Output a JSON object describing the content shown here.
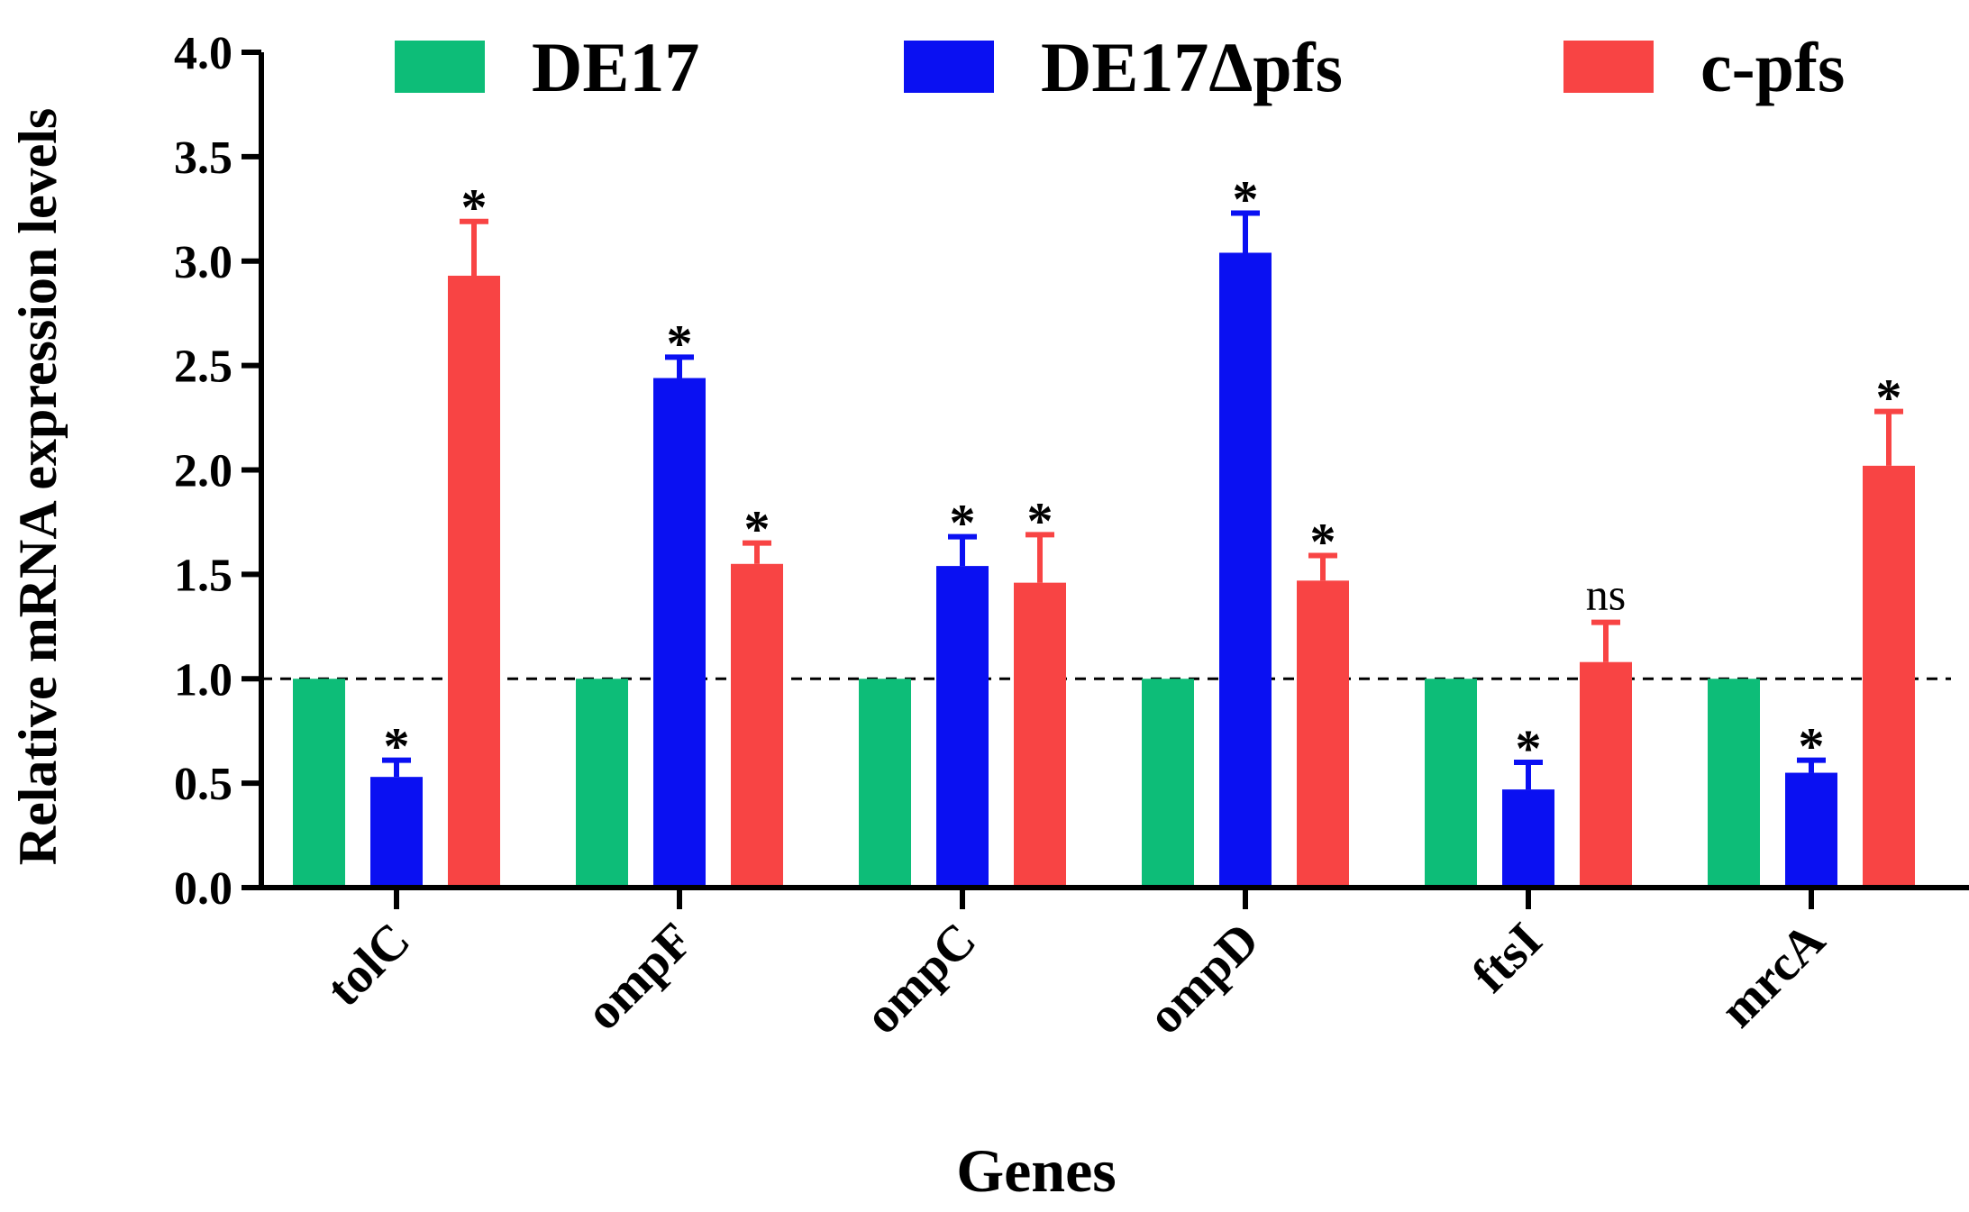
{
  "chart_data": {
    "type": "bar",
    "title": "",
    "xlabel": "Genes",
    "ylabel": "Relative mRNA expression levels",
    "ylim": [
      0,
      4.0
    ],
    "yticks": [
      "0.0",
      "0.5",
      "1.0",
      "1.5",
      "2.0",
      "2.5",
      "3.0",
      "3.5",
      "4.0"
    ],
    "categories": [
      "tolC",
      "ompF",
      "ompC",
      "ompD",
      "ftsI",
      "mrcA"
    ],
    "reference_line": 1.0,
    "legend_position": "top",
    "series": [
      {
        "name": "DE17",
        "color": "#0dbd78",
        "values": [
          1.0,
          1.0,
          1.0,
          1.0,
          1.0,
          1.0
        ],
        "errors": [
          0,
          0,
          0,
          0,
          0,
          0
        ],
        "significance": [
          "",
          "",
          "",
          "",
          "",
          ""
        ]
      },
      {
        "name": "DE17Δpfs",
        "color": "#0a10f2",
        "values": [
          0.53,
          2.44,
          1.54,
          3.04,
          0.47,
          0.55
        ],
        "errors": [
          0.08,
          0.1,
          0.14,
          0.19,
          0.13,
          0.06
        ],
        "significance": [
          "*",
          "*",
          "*",
          "*",
          "*",
          "*"
        ]
      },
      {
        "name": "c-pfs",
        "color": "#f84444",
        "values": [
          2.93,
          1.55,
          1.46,
          1.47,
          1.08,
          2.02
        ],
        "errors": [
          0.26,
          0.1,
          0.23,
          0.12,
          0.19,
          0.26
        ],
        "significance": [
          "*",
          "*",
          "*",
          "*",
          "ns",
          "*"
        ]
      }
    ]
  }
}
